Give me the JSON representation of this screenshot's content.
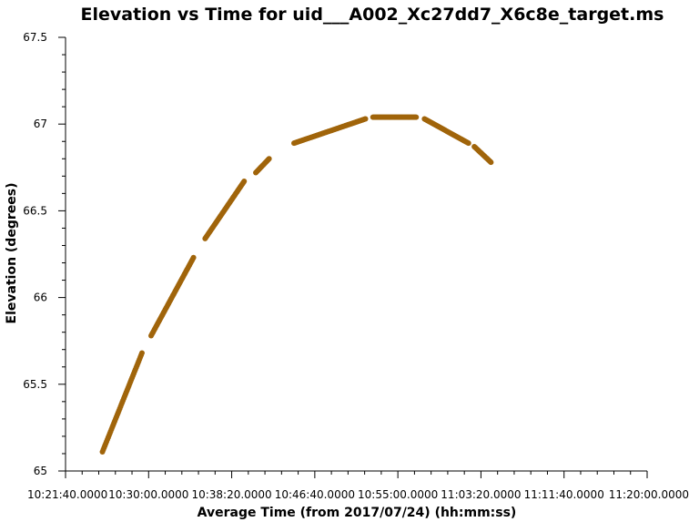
{
  "chart_data": {
    "type": "scatter",
    "title": "Elevation vs Time for uid___A002_Xc27dd7_X6c8e_target.ms",
    "xlabel": "Average Time (from 2017/07/24) (hh:mm:ss)",
    "ylabel": "Elevation (degrees)",
    "x_ticks": [
      "10:21:40.0000",
      "10:30:00.0000",
      "10:38:20.0000",
      "10:46:40.0000",
      "10:55:00.0000",
      "11:03:20.0000",
      "11:11:40.0000",
      "11:20:00.0000"
    ],
    "y_ticks": [
      "65",
      "65.5",
      "66",
      "66.5",
      "67",
      "67.5"
    ],
    "xlim": [
      "10:21:40",
      "11:20:00"
    ],
    "ylim": [
      65,
      67.5
    ],
    "grid": false,
    "point_color": "#a0640a",
    "series": [
      {
        "segments": [
          {
            "start": "10:25:22",
            "end": "10:29:20",
            "y_start": 65.11,
            "y_end": 65.68
          },
          {
            "start": "10:30:15",
            "end": "10:34:30",
            "y_start": 65.78,
            "y_end": 66.23
          },
          {
            "start": "10:35:40",
            "end": "10:39:35",
            "y_start": 66.34,
            "y_end": 66.67
          },
          {
            "start": "10:40:45",
            "end": "10:42:05",
            "y_start": 66.72,
            "y_end": 66.8
          },
          {
            "start": "10:44:35",
            "end": "10:51:45",
            "y_start": 66.89,
            "y_end": 67.03
          },
          {
            "start": "10:52:30",
            "end": "10:56:50",
            "y_start": 67.04,
            "y_end": 67.04
          },
          {
            "start": "10:57:40",
            "end": "11:02:05",
            "y_start": 67.03,
            "y_end": 66.89
          },
          {
            "start": "11:02:40",
            "end": "11:04:20",
            "y_start": 66.87,
            "y_end": 66.78
          }
        ]
      }
    ]
  }
}
